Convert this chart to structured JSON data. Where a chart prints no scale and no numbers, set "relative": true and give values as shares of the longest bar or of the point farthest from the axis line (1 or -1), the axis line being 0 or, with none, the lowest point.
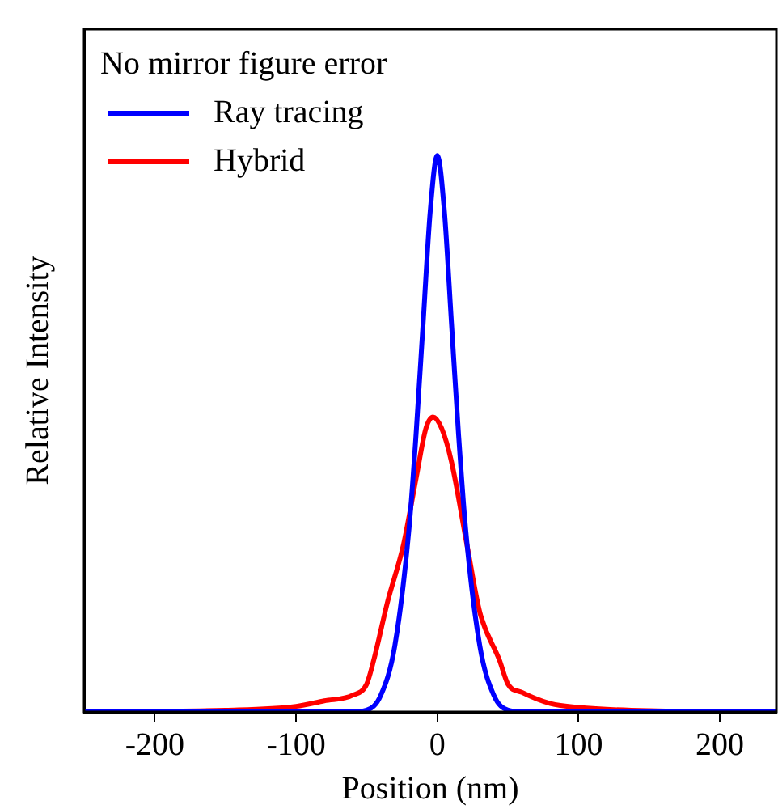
{
  "chart_data": {
    "type": "line",
    "relative": true,
    "xlabel": "Position (nm)",
    "ylabel": "Relative Intensity",
    "legend_title": "No mirror figure error",
    "legend": "top left",
    "marker": "none",
    "line_style": "solid",
    "grid": false,
    "xlim": [
      -250,
      240
    ],
    "xticks": [
      -200,
      -100,
      0,
      100,
      200
    ],
    "series": [
      {
        "name": "Ray tracing",
        "color": "#0000ff",
        "x": [
          -250,
          -60,
          -50,
          -40,
          -30,
          -20,
          -15,
          -10,
          -5,
          0,
          5,
          10,
          15,
          20,
          30,
          40,
          50,
          60,
          240
        ],
        "values": [
          0,
          0,
          0.003,
          0.03,
          0.12,
          0.33,
          0.5,
          0.7,
          0.9,
          1,
          0.9,
          0.7,
          0.5,
          0.33,
          0.12,
          0.03,
          0.003,
          0,
          0
        ]
      },
      {
        "name": "Hybrid",
        "color": "#ff0000",
        "x": [
          -250,
          -150,
          -100,
          -80,
          -60,
          -50,
          -45,
          -35,
          -24,
          -15,
          -8,
          -3,
          3,
          10,
          21,
          30,
          44,
          50,
          60,
          80,
          100,
          150,
          240
        ],
        "values": [
          0,
          0.003,
          0.01,
          0.02,
          0.03,
          0.05,
          0.093,
          0.2,
          0.3,
          0.42,
          0.51,
          0.53,
          0.51,
          0.45,
          0.3,
          0.18,
          0.093,
          0.05,
          0.035,
          0.015,
          0.008,
          0.002,
          0
        ]
      }
    ]
  }
}
